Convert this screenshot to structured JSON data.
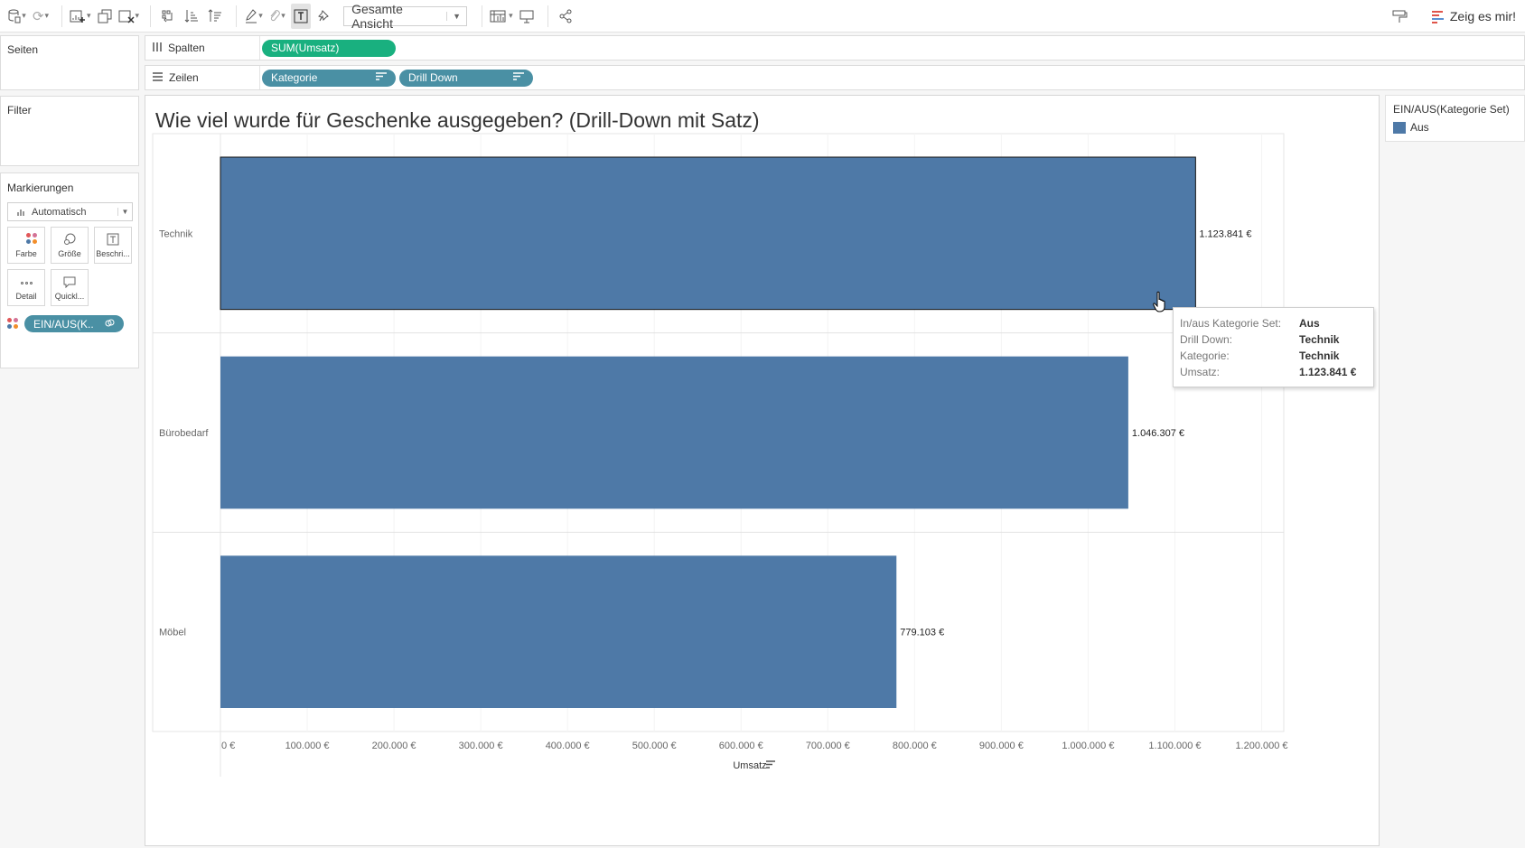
{
  "toolbar": {
    "view_select": "Gesamte Ansicht",
    "show_me": "Zeig es mir!"
  },
  "left": {
    "pages_title": "Seiten",
    "filter_title": "Filter",
    "marks_title": "Markierungen",
    "mark_type": "Automatisch",
    "mark_buttons": [
      "Farbe",
      "Größe",
      "Beschri...",
      "Detail",
      "Quickl..."
    ],
    "color_pill": "EIN/AUS(K.."
  },
  "shelves": {
    "columns_label": "Spalten",
    "columns_pill": "SUM(Umsatz)",
    "rows_label": "Zeilen",
    "rows_pills": [
      "Kategorie",
      "Drill Down"
    ]
  },
  "colors": {
    "bar": "#4e79a7",
    "pill_blue": "#4a90a4",
    "pill_green": "#19b07f"
  },
  "chart_data": {
    "type": "bar",
    "orientation": "horizontal",
    "title": "Wie viel wurde für Geschenke ausgegeben? (Drill-Down mit Satz)",
    "categories": [
      "Technik",
      "Bürobedarf",
      "Möbel"
    ],
    "values": [
      1123841,
      1046307,
      779103
    ],
    "value_labels": [
      "1.123.841 €",
      "1.046.307 €",
      "779.103 €"
    ],
    "xlabel": "Umsatz",
    "xlim": [
      0,
      1200000
    ],
    "x_ticks": [
      0,
      100000,
      200000,
      300000,
      400000,
      500000,
      600000,
      700000,
      800000,
      900000,
      1000000,
      1100000,
      1200000
    ],
    "x_tick_labels": [
      "0 €",
      "100.000 €",
      "200.000 €",
      "300.000 €",
      "400.000 €",
      "500.000 €",
      "600.000 €",
      "700.000 €",
      "800.000 €",
      "900.000 €",
      "1.000.000 €",
      "1.100.000 €",
      "1.200.000 €"
    ],
    "selected_category": "Technik",
    "legend": {
      "title": "EIN/AUS(Kategorie Set)",
      "items": [
        {
          "label": "Aus",
          "color": "#4e79a7"
        }
      ]
    }
  },
  "tooltip": {
    "rows": [
      {
        "key": "In/aus Kategorie Set:",
        "value": "Aus"
      },
      {
        "key": "Drill Down:",
        "value": "Technik"
      },
      {
        "key": "Kategorie:",
        "value": "Technik"
      },
      {
        "key": "Umsatz:",
        "value": "1.123.841 €"
      }
    ]
  }
}
